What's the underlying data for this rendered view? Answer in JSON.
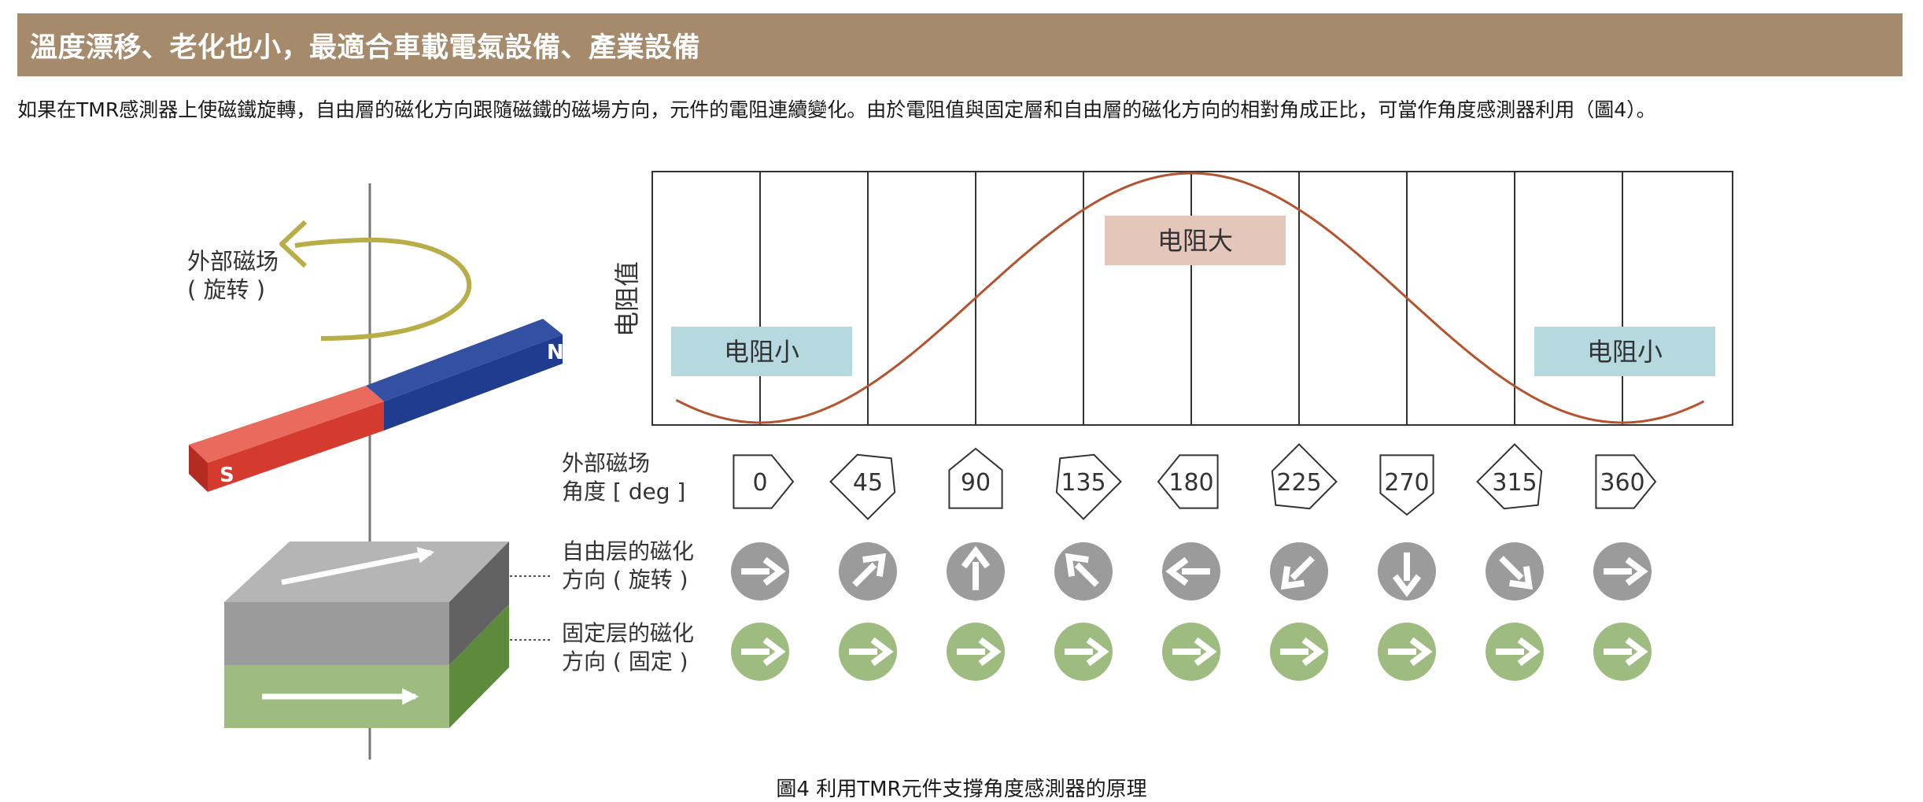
{
  "header": {
    "title": "溫度漂移、老化也小，最適合車載電氣設備、產業設備"
  },
  "intro": {
    "text": "如果在TMR感測器上使磁鐵旋轉，自由層的磁化方向跟隨磁鐵的磁場方向，元件的電阻連續變化。由於電阻值與固定層和自由層的磁化方向的相對角成正比，可當作角度感測器利用（圖4）。"
  },
  "diagram": {
    "external_field_label": [
      "外部磁场",
      "( 旋转 )"
    ],
    "magnet": {
      "north": "N",
      "south": "S"
    },
    "colors": {
      "magnet_north": "#1f3c8f",
      "magnet_south": "#d53a2f",
      "rotation_arrow": "#b9ad48",
      "free_layer": "#9b9b9b",
      "fixed_layer": "#9ebc80",
      "curve": "#b5532f",
      "low_box": "#b6d9e0",
      "high_box": "#e5c6bb"
    },
    "chart": {
      "ylabel": "电阻值",
      "high_label": "电阻大",
      "low_label_left": "电阻小",
      "low_label_right": "电阻小"
    },
    "rows": {
      "angle_label": [
        "外部磁场",
        "角度 [ deg ]"
      ],
      "free_label": [
        "自由层的磁化",
        "方向 ( 旋转 )"
      ],
      "fixed_label": [
        "固定层的磁化",
        "方向 ( 固定 )"
      ]
    },
    "angles": [
      "0",
      "45",
      "90",
      "135",
      "180",
      "225",
      "270",
      "315",
      "360"
    ],
    "angle_values": [
      0,
      45,
      90,
      135,
      180,
      225,
      270,
      315,
      360
    ]
  },
  "chart_data": {
    "type": "line",
    "ylabel": "电阻值",
    "x": [
      0,
      45,
      90,
      135,
      180,
      225,
      270,
      315,
      360
    ],
    "values": [
      0,
      0.15,
      0.5,
      0.85,
      1,
      0.85,
      0.5,
      0.15,
      0
    ],
    "categories": [
      "0",
      "45",
      "90",
      "135",
      "180",
      "225",
      "270",
      "315",
      "360"
    ],
    "annotations": [
      "电阻大",
      "电阻小",
      "电阻小"
    ]
  },
  "caption": {
    "text": "圖4 利用TMR元件支撐角度感測器的原理"
  }
}
